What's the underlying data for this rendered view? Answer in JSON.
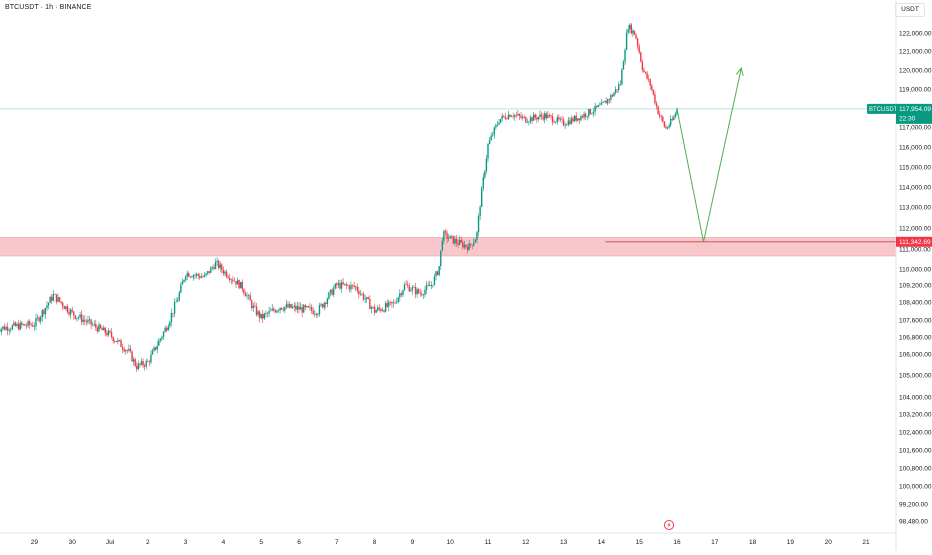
{
  "header": {
    "title": "BTCUSDT · 1h · BINANCE",
    "currency": "USDT"
  },
  "colors": {
    "up": "#089981",
    "down": "#f23645",
    "zone_fill": "#f7c7cb",
    "zone_line": "#e8a0a6",
    "projection": "#4caf50",
    "price_line": "#9fd8cf",
    "alert_icon": "#f23645"
  },
  "chart_data": {
    "type": "candlestick",
    "symbol": "BTCUSDT",
    "interval": "1h",
    "exchange": "BINANCE",
    "y_ticks": [
      122000,
      121000,
      120000,
      119000,
      118000,
      117000,
      116000,
      115000,
      114000,
      113000,
      112000,
      111000,
      110000,
      109200,
      108400,
      107600,
      106800,
      106000,
      105000,
      104000,
      103200,
      102400,
      101600,
      100800,
      100000,
      99200,
      98480
    ],
    "x_ticks": [
      "29",
      "30",
      "Jul",
      "2",
      "3",
      "4",
      "5",
      "6",
      "7",
      "8",
      "9",
      "10",
      "11",
      "12",
      "13",
      "14",
      "15",
      "16",
      "17",
      "18",
      "19",
      "20",
      "21"
    ],
    "x_tick_days": [
      -2,
      -1,
      0,
      1,
      2,
      3,
      4,
      5,
      6,
      7,
      8,
      9,
      10,
      11,
      12,
      13,
      14,
      15,
      16,
      17,
      18,
      19,
      20
    ],
    "candles_daily_path": [
      [
        -3.0,
        107200
      ],
      [
        -2.0,
        107400
      ],
      [
        -1.5,
        108700
      ],
      [
        -1.0,
        107900
      ],
      [
        -0.5,
        107400
      ],
      [
        0.0,
        106900
      ],
      [
        0.5,
        106100
      ],
      [
        0.7,
        105400
      ],
      [
        1.0,
        105600
      ],
      [
        1.5,
        107300
      ],
      [
        1.8,
        108600
      ],
      [
        2.0,
        109800
      ],
      [
        2.5,
        109600
      ],
      [
        2.8,
        110300
      ],
      [
        3.0,
        109900
      ],
      [
        3.5,
        109100
      ],
      [
        3.8,
        108100
      ],
      [
        4.0,
        107700
      ],
      [
        4.5,
        108200
      ],
      [
        5.0,
        108100
      ],
      [
        5.5,
        108000
      ],
      [
        6.0,
        109200
      ],
      [
        6.5,
        109100
      ],
      [
        7.0,
        108000
      ],
      [
        7.5,
        108300
      ],
      [
        7.8,
        109200
      ],
      [
        8.2,
        108800
      ],
      [
        8.5,
        109200
      ],
      [
        8.7,
        110000
      ],
      [
        8.8,
        111700
      ],
      [
        9.2,
        111300
      ],
      [
        9.5,
        111100
      ],
      [
        9.7,
        111600
      ],
      [
        9.8,
        113300
      ],
      [
        10.0,
        116100
      ],
      [
        10.3,
        117400
      ],
      [
        10.6,
        117700
      ],
      [
        11.0,
        117400
      ],
      [
        11.5,
        117600
      ],
      [
        12.0,
        117200
      ],
      [
        12.5,
        117600
      ],
      [
        13.0,
        118100
      ],
      [
        13.3,
        118700
      ],
      [
        13.5,
        119300
      ],
      [
        13.7,
        122400
      ],
      [
        13.9,
        121900
      ],
      [
        14.1,
        120000
      ],
      [
        14.3,
        119200
      ],
      [
        14.5,
        117800
      ],
      [
        14.7,
        116900
      ],
      [
        14.9,
        117400
      ],
      [
        15.0,
        117954
      ]
    ],
    "current_price": {
      "symbol_label": "BTCUSDT",
      "price_label": "117,954.09",
      "countdown_label": "22:30",
      "value": 117954.09
    },
    "support_level": {
      "price_label": "111,342.69",
      "value": 111342.69
    },
    "support_zone": {
      "from": 110650,
      "to": 111550
    },
    "projection_path": [
      [
        15.0,
        117954
      ],
      [
        15.7,
        111342
      ],
      [
        16.7,
        120100
      ]
    ]
  }
}
